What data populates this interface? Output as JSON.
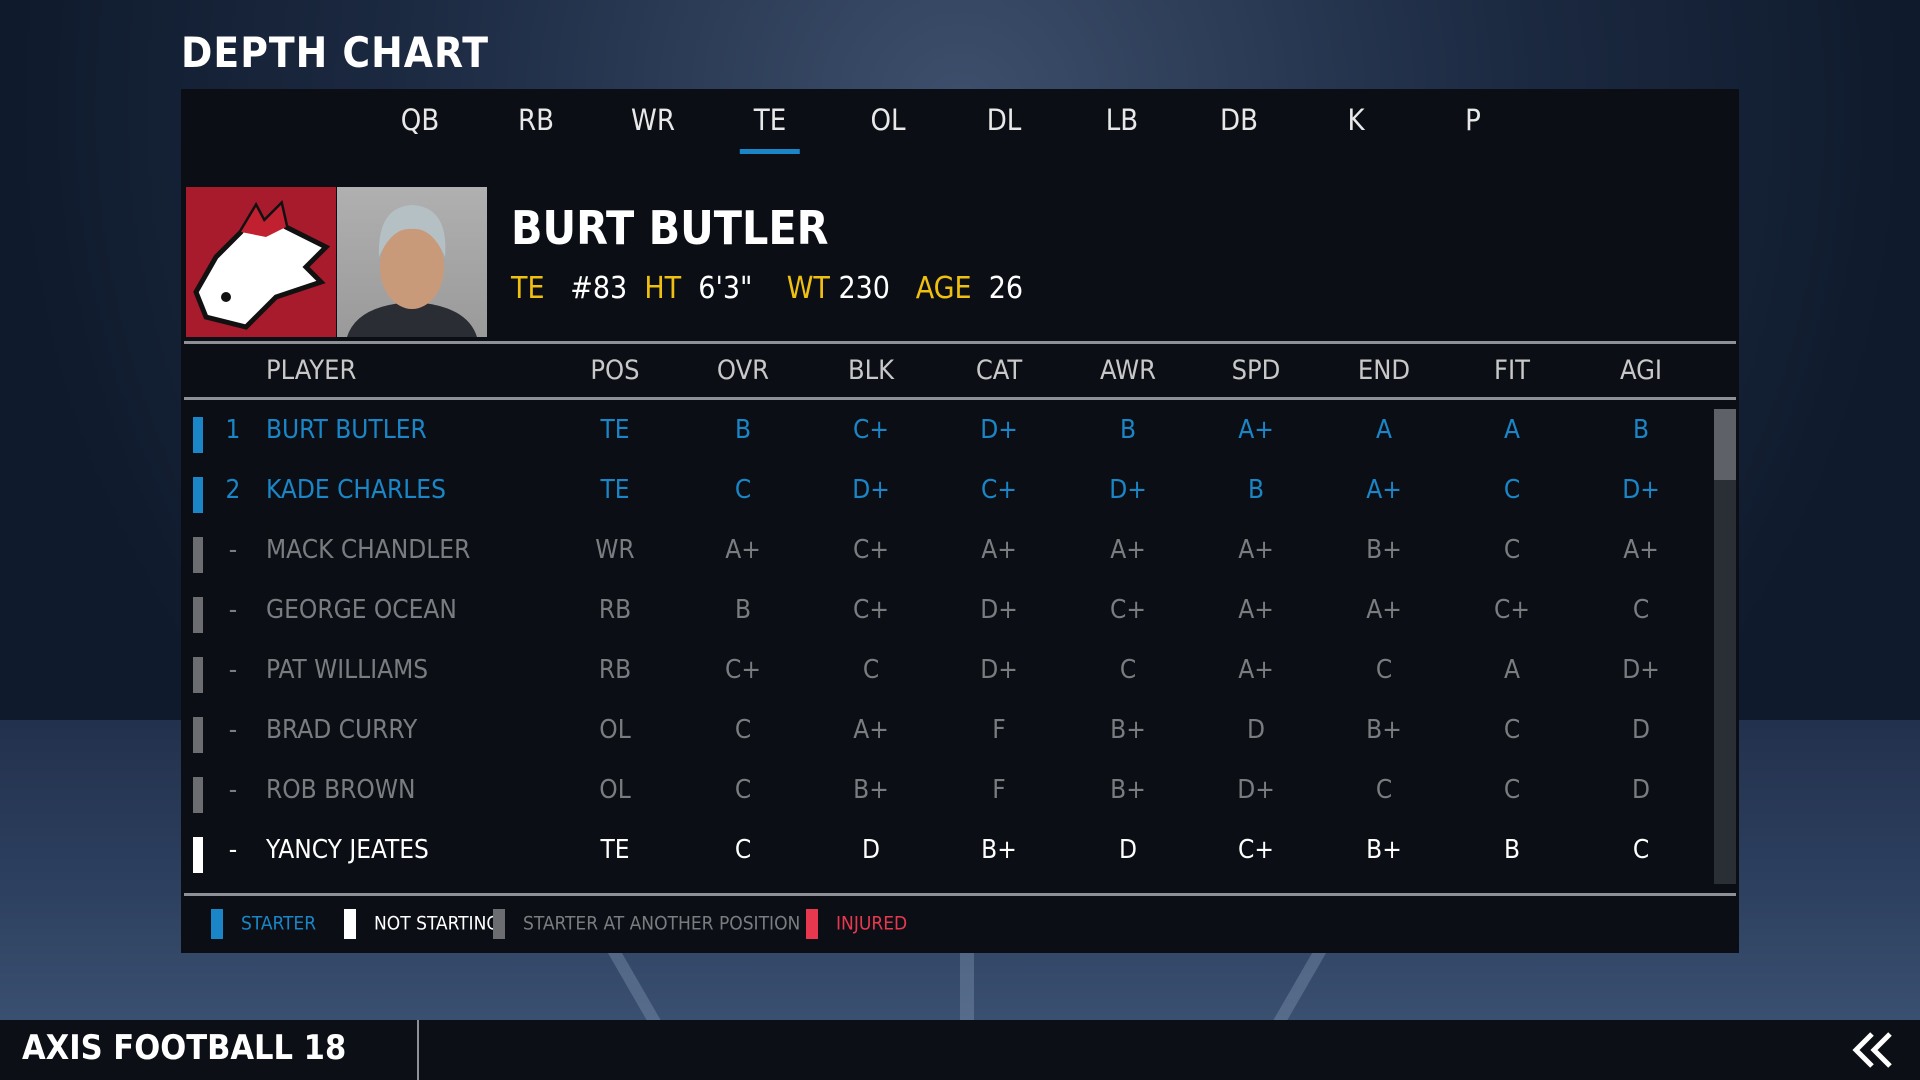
{
  "title": "DEPTH CHART",
  "tabs": [
    "QB",
    "RB",
    "WR",
    "TE",
    "OL",
    "DL",
    "LB",
    "DB",
    "K",
    "P"
  ],
  "active_tab": "TE",
  "player": {
    "name": "BURT BUTLER",
    "pos": "TE",
    "number": "#83",
    "ht_label": "HT",
    "ht": "6'3\"",
    "wt_label": "WT",
    "wt": "230",
    "age_label": "AGE",
    "age": "26"
  },
  "columns": [
    "PLAYER",
    "POS",
    "OVR",
    "BLK",
    "CAT",
    "AWR",
    "SPD",
    "END",
    "FIT",
    "AGI"
  ],
  "rows": [
    {
      "rank": "1",
      "status": "starter",
      "cells": [
        "BURT BUTLER",
        "TE",
        "B",
        "C+",
        "D+",
        "B",
        "A+",
        "A",
        "A",
        "B"
      ]
    },
    {
      "rank": "2",
      "status": "starter",
      "cells": [
        "KADE CHARLES",
        "TE",
        "C",
        "D+",
        "C+",
        "D+",
        "B",
        "A+",
        "C",
        "D+"
      ]
    },
    {
      "rank": "-",
      "status": "other",
      "cells": [
        "MACK CHANDLER",
        "WR",
        "A+",
        "C+",
        "A+",
        "A+",
        "A+",
        "B+",
        "C",
        "A+"
      ]
    },
    {
      "rank": "-",
      "status": "other",
      "cells": [
        "GEORGE OCEAN",
        "RB",
        "B",
        "C+",
        "D+",
        "C+",
        "A+",
        "A+",
        "C+",
        "C"
      ]
    },
    {
      "rank": "-",
      "status": "other",
      "cells": [
        "PAT WILLIAMS",
        "RB",
        "C+",
        "C",
        "D+",
        "C",
        "A+",
        "C",
        "A",
        "D+"
      ]
    },
    {
      "rank": "-",
      "status": "other",
      "cells": [
        "BRAD CURRY",
        "OL",
        "C",
        "A+",
        "F",
        "B+",
        "D",
        "B+",
        "C",
        "D"
      ]
    },
    {
      "rank": "-",
      "status": "other",
      "cells": [
        "ROB BROWN",
        "OL",
        "C",
        "B+",
        "F",
        "B+",
        "D+",
        "C",
        "C",
        "D"
      ]
    },
    {
      "rank": "-",
      "status": "not_starting",
      "cells": [
        "YANCY JEATES",
        "TE",
        "C",
        "D",
        "B+",
        "D",
        "C+",
        "B+",
        "B",
        "C"
      ]
    }
  ],
  "legend": [
    {
      "label": "STARTER",
      "color": "#1a86c8"
    },
    {
      "label": "NOT STARTING",
      "color": "#ffffff"
    },
    {
      "label": "STARTER AT ANOTHER POSITION",
      "color": "#6b6d70"
    },
    {
      "label": "INJURED",
      "color": "#e8384f"
    }
  ],
  "footer": {
    "brand": "AXIS FOOTBALL 18",
    "back_icon": "double-chevron-left-icon"
  }
}
